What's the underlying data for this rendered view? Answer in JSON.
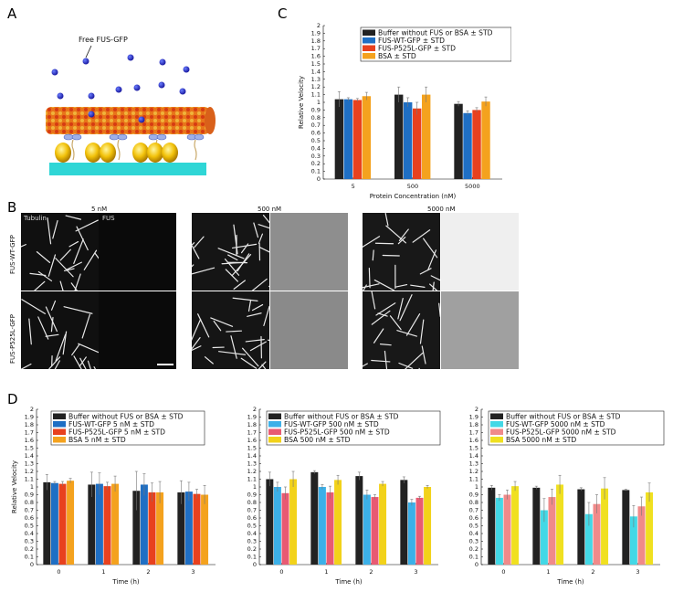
{
  "panels": {
    "a": "A",
    "b": "B",
    "c": "C",
    "d": "D"
  },
  "schematic": {
    "free_label": "Free FUS-GFP"
  },
  "micrographs": {
    "conc_labels": [
      "5 nM",
      "500 nM",
      "5000 nM"
    ],
    "row_labels": [
      "FUS-WT-GFP",
      "FUS-P525L-GFP"
    ],
    "channel_labels": [
      "Tubulin",
      "FUS"
    ]
  },
  "colors": {
    "buffer": "#222222",
    "wt_c": "#1f6fc4",
    "p525_c": "#e8411e",
    "bsa_c": "#f4a21e",
    "wt_d2": "#3cb0e8",
    "p525_d2": "#e85a72",
    "bsa_d2": "#f2d21a",
    "wt_d3": "#43d8e6",
    "p525_d3": "#f08a8a",
    "bsa_d3": "#f0e020"
  },
  "chart_data": [
    {
      "id": "C",
      "type": "bar",
      "categories": [
        "5",
        "500",
        "5000"
      ],
      "xlabel": "Protein Concentration (nM)",
      "ylabel": "Relative Velocity",
      "ylim": [
        0,
        2
      ],
      "yticks": [
        "0",
        "0.1",
        "0.2",
        "0.3",
        "0.4",
        "0.5",
        "0.6",
        "0.7",
        "0.8",
        "0.9",
        "1",
        "1.1",
        "1.2",
        "1.3",
        "1.4",
        "1.5",
        "1.6",
        "1.7",
        "1.8",
        "1.9",
        "2"
      ],
      "legend_position": "top-right",
      "series": [
        {
          "name": "Buffer without FUS or BSA ± STD",
          "color_key": "buffer",
          "values": [
            1.04,
            1.1,
            0.98
          ],
          "err": [
            0.1,
            0.1,
            0.03
          ]
        },
        {
          "name": "FUS-WT-GFP ± STD",
          "color_key": "wt_c",
          "values": [
            1.04,
            1.0,
            0.86
          ],
          "err": [
            0.02,
            0.06,
            0.03
          ]
        },
        {
          "name": "FUS-P525L-GFP ± STD",
          "color_key": "p525_c",
          "values": [
            1.03,
            0.92,
            0.9
          ],
          "err": [
            0.02,
            0.08,
            0.03
          ]
        },
        {
          "name": "BSA ± STD",
          "color_key": "bsa_c",
          "values": [
            1.08,
            1.1,
            1.01
          ],
          "err": [
            0.05,
            0.1,
            0.06
          ]
        }
      ]
    },
    {
      "id": "D1",
      "type": "bar",
      "categories": [
        "0",
        "1",
        "2",
        "3"
      ],
      "xlabel": "Time (h)",
      "ylabel": "Relative Velocity",
      "ylim": [
        0,
        2
      ],
      "yticks": [
        "0",
        "0.1",
        "0.2",
        "0.3",
        "0.4",
        "0.5",
        "0.6",
        "0.7",
        "0.8",
        "0.9",
        "1",
        "1.1",
        "1.2",
        "1.3",
        "1.4",
        "1.5",
        "1.6",
        "1.7",
        "1.8",
        "1.9",
        "2"
      ],
      "legend_position": "top",
      "series": [
        {
          "name": "Buffer without FUS or BSA ± STD",
          "color_key": "buffer",
          "values": [
            1.06,
            1.03,
            0.95,
            0.93
          ],
          "err": [
            0.1,
            0.16,
            0.25,
            0.15
          ]
        },
        {
          "name": "FUS-WT-GFP 5 nM ± STD",
          "color_key": "wt_c",
          "values": [
            1.05,
            1.04,
            1.03,
            0.94
          ],
          "err": [
            0.02,
            0.14,
            0.14,
            0.12
          ]
        },
        {
          "name": "FUS-P525L-GFP 5 nM ± STD",
          "color_key": "p525_c",
          "values": [
            1.04,
            1.01,
            0.93,
            0.91
          ],
          "err": [
            0.03,
            0.05,
            0.12,
            0.06
          ]
        },
        {
          "name": "BSA 5 nM ± STD",
          "color_key": "bsa_c",
          "values": [
            1.08,
            1.04,
            0.93,
            0.9
          ],
          "err": [
            0.03,
            0.1,
            0.14,
            0.12
          ]
        }
      ]
    },
    {
      "id": "D2",
      "type": "bar",
      "categories": [
        "0",
        "1",
        "2",
        "3"
      ],
      "xlabel": "Time (h)",
      "ylabel": "",
      "ylim": [
        0,
        2
      ],
      "yticks": [
        "0",
        "0.1",
        "0.2",
        "0.3",
        "0.4",
        "0.5",
        "0.6",
        "0.7",
        "0.8",
        "0.9",
        "1",
        "1.1",
        "1.2",
        "1.3",
        "1.4",
        "1.5",
        "1.6",
        "1.7",
        "1.8",
        "1.9",
        "2"
      ],
      "legend_position": "top",
      "series": [
        {
          "name": "Buffer without FUS or BSA ± STD",
          "color_key": "buffer",
          "values": [
            1.1,
            1.19,
            1.14,
            1.09
          ],
          "err": [
            0.09,
            0.02,
            0.05,
            0.04
          ]
        },
        {
          "name": "FUS-WT-GFP 500 nM ± STD",
          "color_key": "wt_d2",
          "values": [
            1.0,
            1.0,
            0.9,
            0.8
          ],
          "err": [
            0.06,
            0.03,
            0.06,
            0.04
          ]
        },
        {
          "name": "FUS-P525L-GFP 500 nM ± STD",
          "color_key": "p525_d2",
          "values": [
            0.92,
            0.93,
            0.87,
            0.86
          ],
          "err": [
            0.08,
            0.08,
            0.03,
            0.02
          ]
        },
        {
          "name": "BSA 500 nM ± STD",
          "color_key": "bsa_d2",
          "values": [
            1.1,
            1.09,
            1.04,
            1.0
          ],
          "err": [
            0.1,
            0.06,
            0.03,
            0.02
          ]
        }
      ]
    },
    {
      "id": "D3",
      "type": "bar",
      "categories": [
        "0",
        "1",
        "2",
        "3"
      ],
      "xlabel": "Time (h)",
      "ylabel": "",
      "ylim": [
        0,
        2
      ],
      "yticks": [
        "0",
        "0.1",
        "0.2",
        "0.3",
        "0.4",
        "0.5",
        "0.6",
        "0.7",
        "0.8",
        "0.9",
        "1",
        "1.1",
        "1.2",
        "1.3",
        "1.4",
        "1.5",
        "1.6",
        "1.7",
        "1.8",
        "1.9",
        "2"
      ],
      "legend_position": "top",
      "series": [
        {
          "name": "Buffer without FUS or BSA ± STD",
          "color_key": "buffer",
          "values": [
            0.99,
            0.99,
            0.97,
            0.96
          ],
          "err": [
            0.03,
            0.02,
            0.02,
            0.01
          ]
        },
        {
          "name": "FUS-WT-GFP 5000 nM ± STD",
          "color_key": "wt_d3",
          "values": [
            0.86,
            0.7,
            0.65,
            0.62
          ],
          "err": [
            0.04,
            0.15,
            0.15,
            0.14
          ]
        },
        {
          "name": "FUS-P525L-GFP 5000 nM ± STD",
          "color_key": "p525_d3",
          "values": [
            0.9,
            0.87,
            0.78,
            0.75
          ],
          "err": [
            0.06,
            0.1,
            0.12,
            0.12
          ]
        },
        {
          "name": "BSA 5000 nM ± STD",
          "color_key": "bsa_d3",
          "values": [
            1.01,
            1.03,
            0.98,
            0.93
          ],
          "err": [
            0.06,
            0.12,
            0.14,
            0.12
          ]
        }
      ]
    }
  ]
}
